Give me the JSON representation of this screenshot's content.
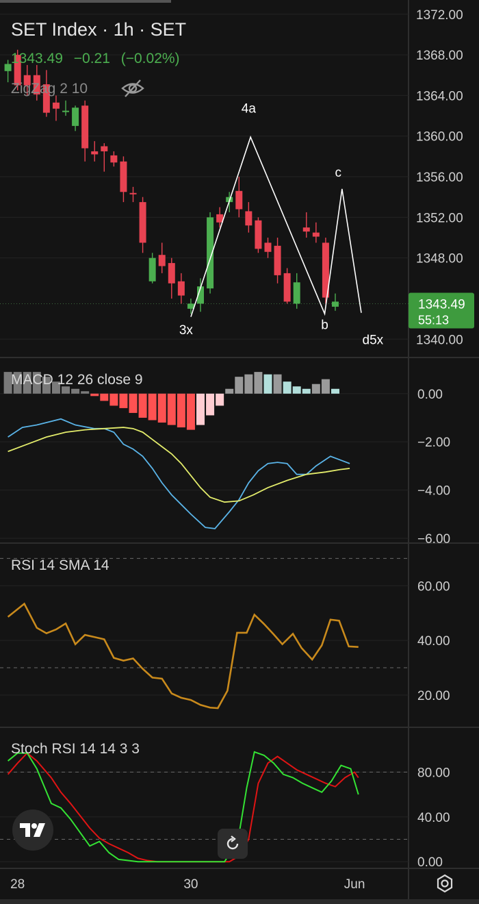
{
  "header": {
    "title": "SET Index · 1h · SET",
    "last": "1343.49",
    "change": "−0.21",
    "change_pct": "(−0.02%)",
    "indicator": "ZigZag 2 10"
  },
  "price_badge": {
    "value": "1343.49",
    "countdown": "55:13"
  },
  "colors": {
    "bg": "#141414",
    "up": "#4caf50",
    "down": "#e84352",
    "macd": "#5ab4e8",
    "signal": "#e3ec6b",
    "rsi": "#c98a1c",
    "stoch_k": "#34e334",
    "stoch_d": "#e01414"
  },
  "panes": {
    "macd_label": "MACD 12 26 close 9",
    "rsi_label": "RSI 14 SMA 14",
    "stoch_label": "Stoch RSI 14 14 3 3"
  },
  "x_axis": {
    "ticks": [
      {
        "i": 1,
        "label": "28"
      },
      {
        "i": 19,
        "label": "30"
      },
      {
        "i": 36,
        "label": "Jun"
      }
    ]
  },
  "chart_data": [
    {
      "type": "candlestick",
      "title": "SET Index · 1h · SET",
      "ylim": [
        1338.2,
        1373.4
      ],
      "y_ticks": [
        "1372.00",
        "1368.00",
        "1364.00",
        "1360.00",
        "1356.00",
        "1352.00",
        "1348.00",
        "1340.00"
      ],
      "candles": [
        {
          "o": 1366.4,
          "h": 1367.5,
          "l": 1365.3,
          "c": 1367.1
        },
        {
          "o": 1368.0,
          "h": 1368.5,
          "l": 1364.5,
          "c": 1365.0
        },
        {
          "o": 1366.0,
          "h": 1367.0,
          "l": 1364.0,
          "c": 1365.0
        },
        {
          "o": 1366.0,
          "h": 1367.0,
          "l": 1363.5,
          "c": 1364.1
        },
        {
          "o": 1365.1,
          "h": 1366.5,
          "l": 1361.9,
          "c": 1362.3
        },
        {
          "o": 1363.3,
          "h": 1364.0,
          "l": 1361.5,
          "c": 1362.7
        },
        {
          "o": 1362.5,
          "h": 1363.5,
          "l": 1362.0,
          "c": 1362.5
        },
        {
          "o": 1361.0,
          "h": 1363.0,
          "l": 1360.5,
          "c": 1362.8
        },
        {
          "o": 1363.0,
          "h": 1363.5,
          "l": 1357.5,
          "c": 1358.8
        },
        {
          "o": 1358.5,
          "h": 1359.5,
          "l": 1357.5,
          "c": 1358.2
        },
        {
          "o": 1359.0,
          "h": 1359.3,
          "l": 1356.5,
          "c": 1358.5
        },
        {
          "o": 1358.1,
          "h": 1358.5,
          "l": 1357.0,
          "c": 1357.4
        },
        {
          "o": 1357.5,
          "h": 1358.0,
          "l": 1353.5,
          "c": 1354.5
        },
        {
          "o": 1354.4,
          "h": 1355.0,
          "l": 1353.5,
          "c": 1354.3
        },
        {
          "o": 1353.5,
          "h": 1354.0,
          "l": 1348.5,
          "c": 1349.5
        },
        {
          "o": 1345.7,
          "h": 1348.5,
          "l": 1345.5,
          "c": 1348.0
        },
        {
          "o": 1348.3,
          "h": 1349.5,
          "l": 1346.5,
          "c": 1347.2
        },
        {
          "o": 1347.5,
          "h": 1348.0,
          "l": 1344.0,
          "c": 1345.5
        },
        {
          "o": 1345.7,
          "h": 1346.5,
          "l": 1343.5,
          "c": 1344.3
        },
        {
          "o": 1343.0,
          "h": 1344.0,
          "l": 1342.5,
          "c": 1343.5
        },
        {
          "o": 1343.5,
          "h": 1346.0,
          "l": 1342.7,
          "c": 1345.2
        },
        {
          "o": 1345.0,
          "h": 1352.5,
          "l": 1344.5,
          "c": 1352.0
        },
        {
          "o": 1352.3,
          "h": 1353.0,
          "l": 1351.0,
          "c": 1351.5
        },
        {
          "o": 1353.5,
          "h": 1354.5,
          "l": 1352.5,
          "c": 1354.0
        },
        {
          "o": 1354.6,
          "h": 1356.0,
          "l": 1352.0,
          "c": 1352.8
        },
        {
          "o": 1352.6,
          "h": 1353.5,
          "l": 1350.5,
          "c": 1351.2
        },
        {
          "o": 1351.7,
          "h": 1352.0,
          "l": 1348.5,
          "c": 1348.9
        },
        {
          "o": 1349.5,
          "h": 1350.0,
          "l": 1348.0,
          "c": 1348.6
        },
        {
          "o": 1349.2,
          "h": 1350.0,
          "l": 1345.5,
          "c": 1346.3
        },
        {
          "o": 1346.5,
          "h": 1347.0,
          "l": 1343.5,
          "c": 1343.7
        },
        {
          "o": 1343.5,
          "h": 1346.5,
          "l": 1343.0,
          "c": 1345.6
        },
        {
          "o": 1351.0,
          "h": 1352.5,
          "l": 1350.0,
          "c": 1350.6
        },
        {
          "o": 1350.5,
          "h": 1351.5,
          "l": 1349.5,
          "c": 1350.1
        },
        {
          "o": 1349.5,
          "h": 1350.0,
          "l": 1343.5,
          "c": 1344.1
        },
        {
          "o": 1343.2,
          "h": 1344.5,
          "l": 1342.8,
          "c": 1343.7
        }
      ],
      "zigzag": [
        {
          "i": 19.0,
          "v": 1342.2
        },
        {
          "i": 25.2,
          "v": 1359.9
        },
        {
          "i": 32.9,
          "v": 1342.5
        },
        {
          "i": 34.7,
          "v": 1354.8
        },
        {
          "i": 36.7,
          "v": 1342.6
        }
      ],
      "annotations": [
        {
          "text": "3x",
          "i": 18.5,
          "v": 1340.5
        },
        {
          "text": "4a",
          "i": 25.0,
          "v": 1362.3
        },
        {
          "text": "b",
          "i": 32.9,
          "v": 1341.0
        },
        {
          "text": "c",
          "i": 34.3,
          "v": 1356.0
        },
        {
          "text": "d5x",
          "i": 37.9,
          "v": 1339.5
        }
      ],
      "last_price": 1343.49
    },
    {
      "type": "line+bar",
      "title": "MACD 12 26 close 9",
      "ylim": [
        -6.2,
        1.5
      ],
      "y_ticks": [
        "0.00",
        "−2.00",
        "−4.00",
        "−6.00"
      ],
      "histogram": [
        0.9,
        0.9,
        0.9,
        0.9,
        0.7,
        0.5,
        0.3,
        0.2,
        0.1,
        -0.1,
        -0.3,
        -0.5,
        -0.6,
        -0.8,
        -1.0,
        -1.1,
        -1.2,
        -1.3,
        -1.4,
        -1.5,
        -1.3,
        -0.9,
        -0.5,
        0.2,
        0.7,
        0.8,
        0.9,
        0.8,
        0.8,
        0.5,
        0.3,
        0.2,
        0.4,
        0.6,
        0.2
      ],
      "macd": [
        -1.8,
        -1.4,
        -1.3,
        -1.2,
        -1.05,
        -1.3,
        -1.45,
        -1.45,
        -1.6,
        -2.1,
        -2.3,
        -2.6,
        -3.1,
        -3.7,
        -4.2,
        -4.6,
        -5.0,
        -5.55,
        -5.6,
        -4.9,
        -4.4,
        -3.7,
        -3.2,
        -2.9,
        -2.85,
        -2.9,
        -3.35,
        -3.35,
        -3.0,
        -2.6,
        -2.9
      ],
      "signal": [
        -2.4,
        -2.1,
        -1.8,
        -1.6,
        -1.5,
        -1.45,
        -1.4,
        -1.45,
        -1.6,
        -1.9,
        -2.2,
        -2.5,
        -2.9,
        -3.4,
        -3.9,
        -4.3,
        -4.5,
        -4.45,
        -4.2,
        -3.9,
        -3.6,
        -3.35,
        -3.25,
        -3.15,
        -3.1
      ],
      "macd_i": [
        0,
        1.5,
        3,
        4,
        5.5,
        7,
        9,
        10,
        11,
        12,
        13,
        14,
        15,
        16,
        17,
        18,
        19,
        20.5,
        21.5,
        23,
        24,
        25,
        26,
        27,
        28,
        29,
        30,
        31,
        32,
        33.5,
        35.5
      ],
      "signal_i": [
        0,
        2,
        4,
        6,
        8,
        10,
        12,
        13,
        14,
        15,
        16,
        17,
        18,
        19,
        20,
        21,
        22.5,
        24,
        25.5,
        27,
        29,
        31,
        33,
        34.5,
        35.5
      ]
    },
    {
      "type": "line",
      "title": "RSI 14 SMA 14",
      "ylim": [
        8.2,
        75.6
      ],
      "y_ticks": [
        "60.00",
        "40.00",
        "20.00"
      ],
      "bands": [
        70,
        30
      ],
      "values": [
        48.6,
        53.4,
        44.6,
        42.6,
        44.0,
        46.2,
        38.6,
        42.0,
        41.2,
        40.4,
        33.6,
        32.6,
        33.4,
        29.6,
        26.4,
        26.0,
        20.6,
        19.0,
        18.2,
        16.4,
        15.4,
        15.2,
        21.6,
        42.8,
        42.8,
        49.4,
        46.0,
        42.2,
        38.6,
        42.4,
        37.2,
        33.0,
        38.2,
        47.6,
        47.2,
        37.8,
        37.6
      ],
      "values_i": [
        0,
        1.7,
        3,
        4,
        5,
        6,
        7,
        8,
        9,
        10,
        11,
        12,
        13,
        14,
        15,
        16,
        17,
        18,
        19,
        20,
        21,
        21.8,
        22.8,
        23.8,
        24.8,
        25.6,
        26.6,
        27.6,
        28.5,
        29.6,
        30.5,
        31.6,
        32.6,
        33.5,
        34.4,
        35.4,
        36.4
      ]
    },
    {
      "type": "line",
      "title": "Stoch RSI 14 14 3 3",
      "ylim": [
        -6.0,
        120.0
      ],
      "y_ticks": [
        "80.00",
        "40.00",
        "0.00"
      ],
      "bands": [
        80,
        20
      ],
      "k": [
        90,
        97,
        97,
        83,
        52,
        48,
        38,
        26,
        14,
        18,
        8,
        2,
        1,
        0,
        0,
        0,
        0,
        0,
        0,
        0,
        0,
        0,
        0,
        0,
        7,
        14,
        66,
        98,
        95,
        88,
        78,
        75,
        70,
        66,
        62,
        72,
        86,
        83,
        60
      ],
      "d": [
        78,
        88,
        97,
        90,
        75,
        62,
        52,
        41,
        30,
        21,
        16,
        12,
        8,
        3,
        1,
        0,
        0,
        0,
        0,
        0,
        0,
        0,
        0,
        0,
        0,
        5,
        20,
        70,
        88,
        94,
        88,
        82,
        78,
        74,
        70,
        67,
        75,
        80,
        75
      ],
      "k_i": [
        0,
        1,
        2,
        3,
        4.5,
        5.5,
        6.5,
        7.5,
        8.5,
        9.5,
        10.5,
        11.5,
        12.5,
        13.5,
        14.5,
        15.5,
        16.5,
        17.5,
        18.5,
        19.5,
        20.5,
        21.5,
        22,
        22.5,
        23,
        23.8,
        24.8,
        25.6,
        26.6,
        27.6,
        28.6,
        29.6,
        30.6,
        31.6,
        32.6,
        33.6,
        34.6,
        35.6,
        36.4
      ],
      "d_i": [
        0,
        1,
        2,
        3,
        4.5,
        5.5,
        6.5,
        7.5,
        8.5,
        9.5,
        10.5,
        11.5,
        12.5,
        13.5,
        14.5,
        15.5,
        16.5,
        17.5,
        18.5,
        19.5,
        20.5,
        21.5,
        22,
        22.5,
        23,
        24,
        25,
        26,
        27,
        28,
        29,
        30,
        31,
        32,
        33,
        34,
        35,
        36,
        36.4
      ]
    }
  ]
}
